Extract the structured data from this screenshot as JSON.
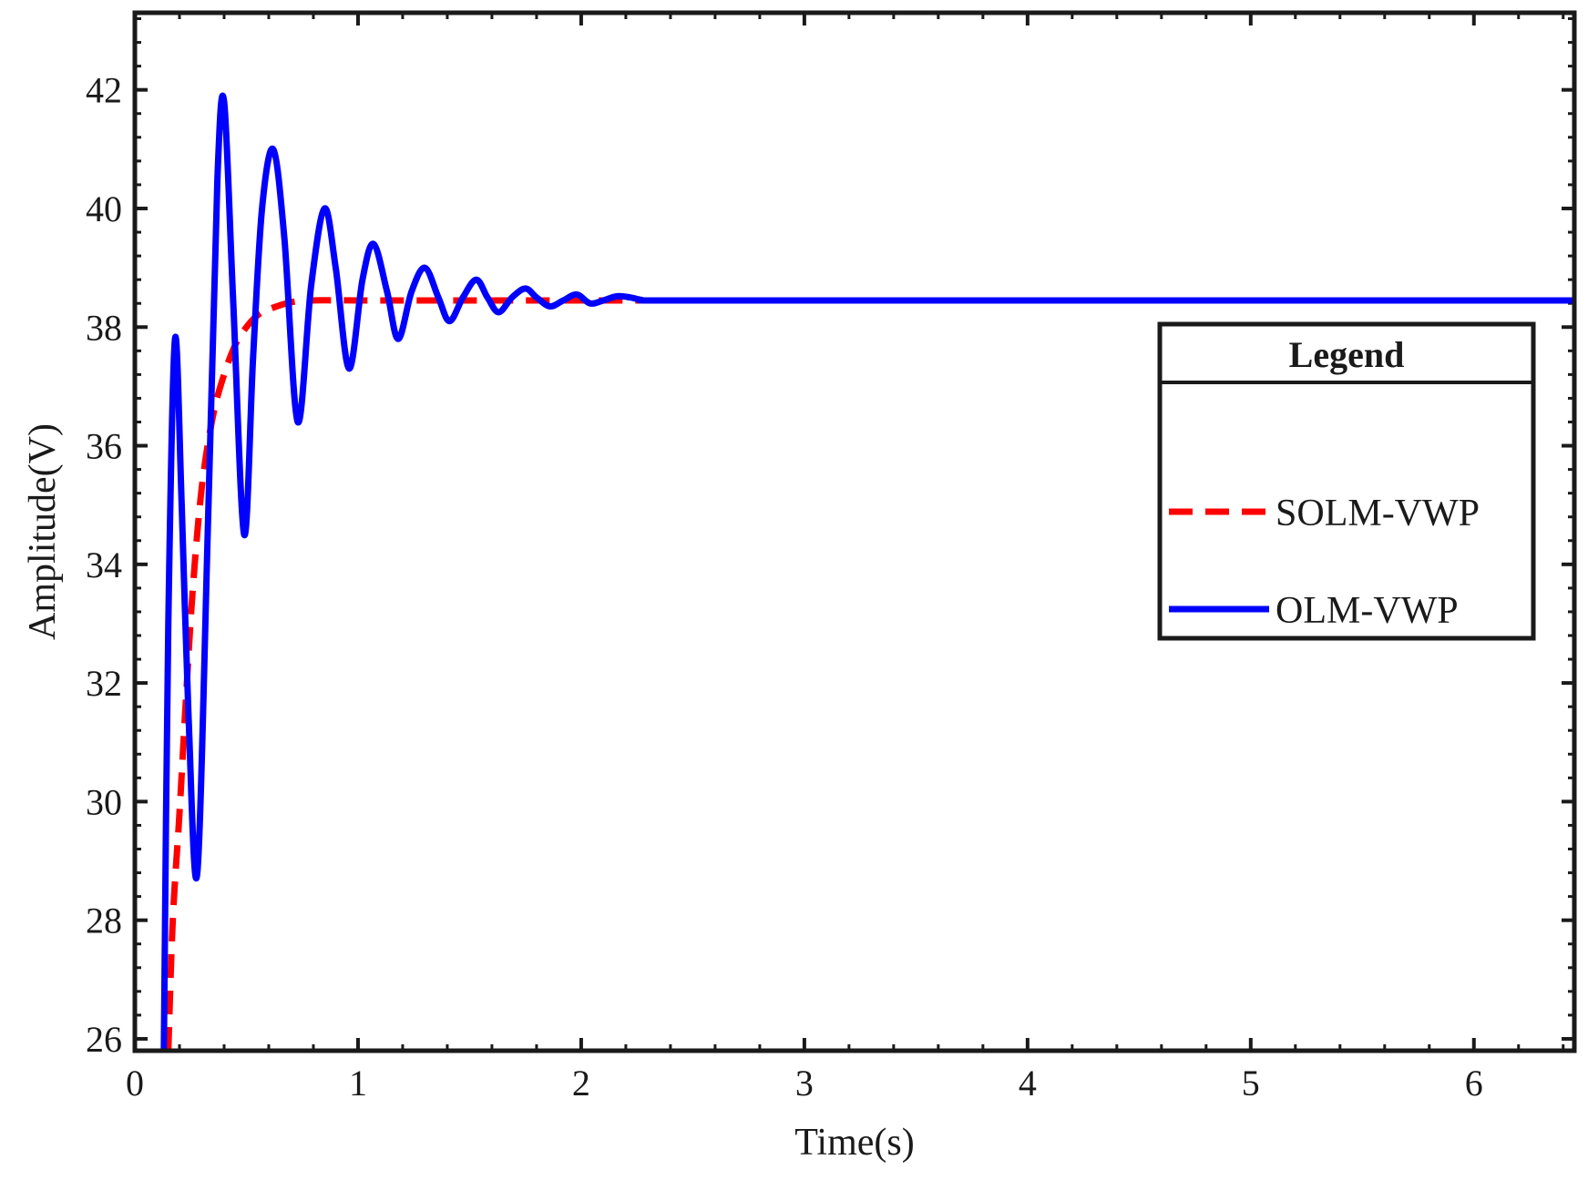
{
  "chart_data": {
    "type": "line",
    "xlabel": "Time(s)",
    "ylabel": "Amplitude(V)",
    "xlim": [
      0,
      6.45
    ],
    "ylim": [
      25.8,
      43.3
    ],
    "xticks": [
      0,
      1,
      2,
      3,
      4,
      5,
      6
    ],
    "yticks": [
      26,
      28,
      30,
      32,
      34,
      36,
      38,
      40,
      42
    ],
    "grid": false,
    "legend": {
      "title": "Legend",
      "placement": "right"
    },
    "series": [
      {
        "name": "SOLM-VWP",
        "color": "#ff0000",
        "style": "dashed",
        "x": [
          0.15,
          0.17,
          0.2,
          0.23,
          0.26,
          0.3,
          0.35,
          0.4,
          0.45,
          0.5,
          0.55,
          0.6,
          0.7,
          0.8,
          1.0,
          1.5,
          2.0,
          3.0,
          4.0,
          5.0,
          6.0,
          6.45
        ],
        "y": [
          25.8,
          28.0,
          29.8,
          31.8,
          33.6,
          35.3,
          36.5,
          37.2,
          37.7,
          38.0,
          38.2,
          38.3,
          38.42,
          38.45,
          38.45,
          38.45,
          38.45,
          38.45,
          38.45,
          38.45,
          38.45,
          38.45
        ]
      },
      {
        "name": "OLM-VWP",
        "color": "#0000ff",
        "style": "solid",
        "x": [
          0.13,
          0.15,
          0.18,
          0.21,
          0.24,
          0.28,
          0.33,
          0.37,
          0.4,
          0.44,
          0.49,
          0.53,
          0.57,
          0.62,
          0.67,
          0.73,
          0.79,
          0.85,
          0.9,
          0.96,
          1.02,
          1.07,
          1.13,
          1.18,
          1.24,
          1.3,
          1.36,
          1.41,
          1.47,
          1.53,
          1.58,
          1.63,
          1.69,
          1.75,
          1.8,
          1.86,
          1.92,
          1.98,
          2.04,
          2.1,
          2.16,
          2.22,
          2.27,
          2.33,
          3.0,
          4.0,
          5.0,
          6.0,
          6.45
        ],
        "y": [
          25.8,
          33.0,
          37.8,
          35.0,
          31.5,
          28.8,
          35.0,
          40.5,
          41.8,
          38.5,
          34.5,
          37.5,
          40.0,
          41.0,
          39.5,
          36.4,
          38.7,
          40.0,
          39.0,
          37.3,
          38.8,
          39.4,
          38.6,
          37.8,
          38.6,
          39.0,
          38.5,
          38.1,
          38.5,
          38.8,
          38.5,
          38.25,
          38.5,
          38.65,
          38.5,
          38.35,
          38.45,
          38.55,
          38.4,
          38.45,
          38.52,
          38.5,
          38.46,
          38.45,
          38.45,
          38.45,
          38.45,
          38.45,
          38.45
        ]
      }
    ]
  }
}
